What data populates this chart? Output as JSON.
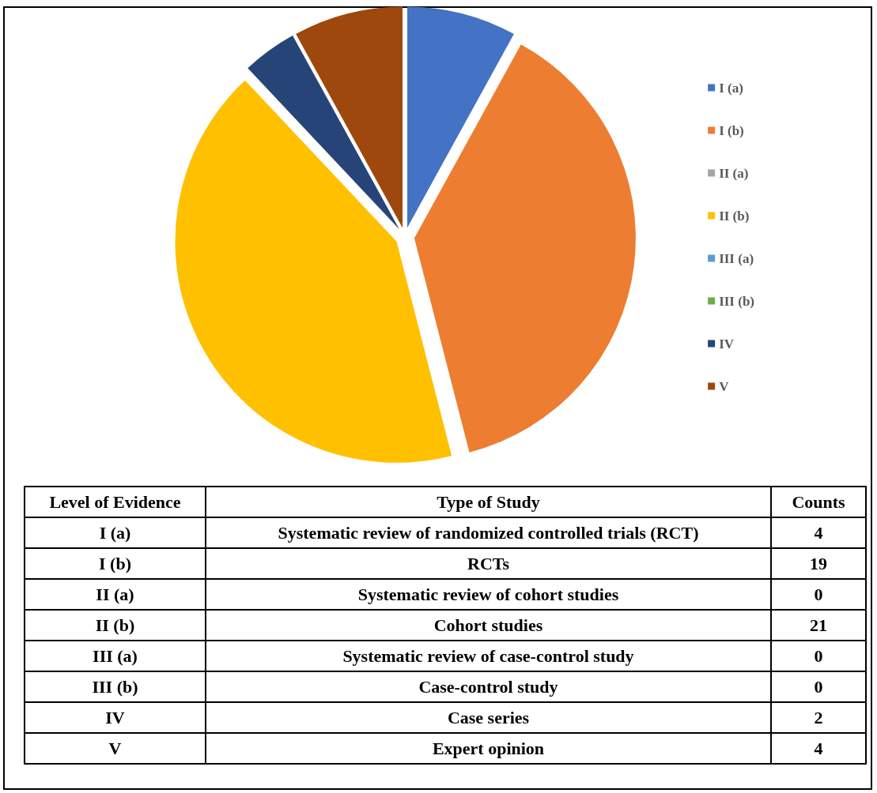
{
  "chart_data": {
    "type": "pie",
    "categories": [
      "I (a)",
      "I (b)",
      "II (a)",
      "II (b)",
      "III (a)",
      "III (b)",
      "IV",
      "V"
    ],
    "values": [
      8,
      38,
      0,
      42,
      0,
      0,
      4,
      8
    ],
    "colors": [
      "#4472c4",
      "#ed7d31",
      "#a5a5a5",
      "#ffc000",
      "#5b9bd5",
      "#70ad47",
      "#264478",
      "#9e480e"
    ],
    "legend": "right",
    "annotations": [
      "Level of Evidence",
      "Type of Study",
      "Counts",
      "Systematic review of randomized controlled trials (RCT)",
      "4",
      "RCTs",
      "19",
      "Systematic review of cohort studies",
      "0",
      "Cohort studies",
      "21",
      "Systematic review of case-control study",
      "0",
      "Case-control study",
      "0",
      "Case series",
      "2",
      "Expert opinion",
      "4"
    ]
  }
}
